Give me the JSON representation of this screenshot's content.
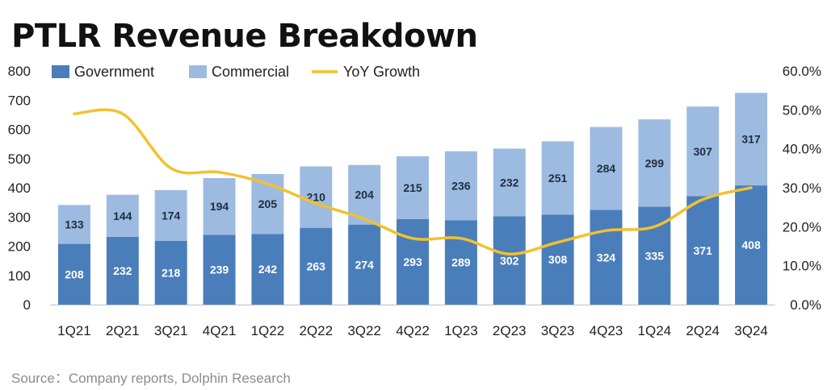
{
  "chart_data": {
    "type": "bar",
    "stacked": true,
    "title": "PTLR Revenue Breakdown",
    "categories": [
      "1Q21",
      "2Q21",
      "3Q21",
      "4Q21",
      "1Q22",
      "2Q22",
      "3Q22",
      "4Q22",
      "1Q23",
      "2Q23",
      "3Q23",
      "4Q23",
      "1Q24",
      "2Q24",
      "3Q24"
    ],
    "series": [
      {
        "name": "Government",
        "type": "bar",
        "axis": "left",
        "color": "#4a7ebb",
        "values": [
          208,
          232,
          218,
          239,
          242,
          263,
          274,
          293,
          289,
          302,
          308,
          324,
          335,
          371,
          408
        ]
      },
      {
        "name": "Commercial",
        "type": "bar",
        "axis": "left",
        "color": "#9dbbe0",
        "values": [
          133,
          144,
          174,
          194,
          205,
          210,
          204,
          215,
          236,
          232,
          251,
          284,
          299,
          307,
          317
        ]
      },
      {
        "name": "YoY Growth",
        "type": "line",
        "axis": "right",
        "color": "#f2c12e",
        "values": [
          49,
          49,
          35,
          34,
          31,
          26,
          22,
          17,
          17,
          13,
          16,
          19,
          20,
          27,
          30
        ]
      }
    ],
    "y_left": {
      "min": 0,
      "max": 800,
      "ticks": [
        "0",
        "100",
        "200",
        "300",
        "400",
        "500",
        "600",
        "700",
        "800"
      ]
    },
    "y_right": {
      "min": 0,
      "max": 60,
      "ticks": [
        "0.0%",
        "10.0%",
        "20.0%",
        "30.0%",
        "40.0%",
        "50.0%",
        "60.0%"
      ]
    },
    "legend_position": "top",
    "grid": false,
    "source": "Source：Company reports, Dolphin Research"
  }
}
